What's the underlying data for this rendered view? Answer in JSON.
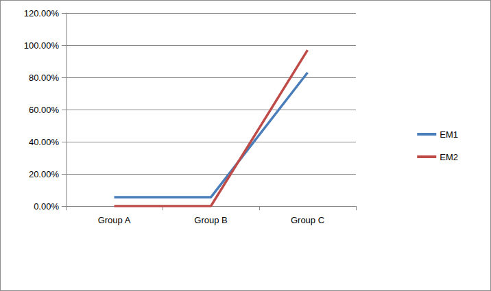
{
  "chart_data": {
    "type": "line",
    "categories": [
      "Group A",
      "Group B",
      "Group C"
    ],
    "series": [
      {
        "name": "EM1",
        "color": "#4a7ebb",
        "values": [
          5.5,
          5.5,
          83
        ]
      },
      {
        "name": "EM2",
        "color": "#be4b48",
        "values": [
          0,
          0,
          97
        ]
      }
    ],
    "ylim": [
      0,
      120
    ],
    "yticks": [
      {
        "value": 0,
        "label": "0.00%"
      },
      {
        "value": 20,
        "label": "20.00%"
      },
      {
        "value": 40,
        "label": "40.00%"
      },
      {
        "value": 60,
        "label": "60.00%"
      },
      {
        "value": 80,
        "label": "80.00%"
      },
      {
        "value": 100,
        "label": "100.00%"
      },
      {
        "value": 120,
        "label": "120.00%"
      }
    ],
    "grid": true,
    "legend": "right"
  }
}
